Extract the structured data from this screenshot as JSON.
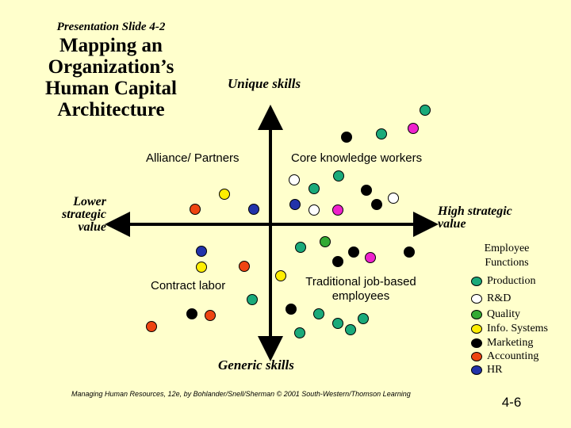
{
  "slide_label": "Presentation Slide 4-2",
  "title_lines": [
    "Mapping an",
    "Organization’s",
    "Human Capital",
    "Architecture"
  ],
  "axes": {
    "top": "Unique skills",
    "bottom": "Generic skills",
    "left_lines": [
      "Lower",
      "strategic",
      "value"
    ],
    "right_lines": [
      "High strategic",
      "value"
    ]
  },
  "quadrants": {
    "top_left": "Alliance/ Partners",
    "top_right": "Core knowledge workers",
    "bottom_left": "Contract labor",
    "bottom_right_lines": [
      "Traditional job-based",
      "employees"
    ]
  },
  "legend": {
    "title_lines": [
      "Employee",
      "Functions"
    ],
    "items": [
      {
        "label": "Production",
        "color": "#1aaa7a"
      },
      {
        "label": "R&D",
        "color": "#ffffff"
      },
      {
        "label": "Quality",
        "color": "#33aa33"
      },
      {
        "label": "Info. Systems",
        "color": "#ffee00"
      },
      {
        "label": "Marketing",
        "color": "#000000"
      },
      {
        "label": "Accounting",
        "color": "#ee4411"
      },
      {
        "label": "HR",
        "color": "#2233aa"
      }
    ]
  },
  "footer": "Managing Human Resources, 12e, by Bohlander/Snell/Sherman © 2001 South-Western/Thomson Learning",
  "page_number": "4-6"
}
